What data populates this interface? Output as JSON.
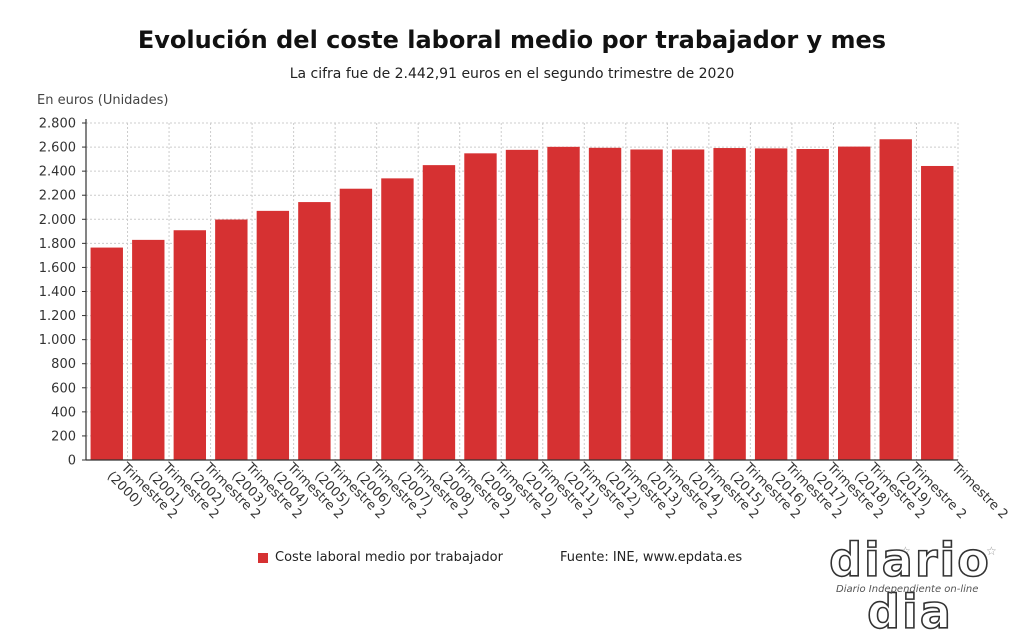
{
  "header": {
    "title": "Evolución del coste laboral medio por trabajador y mes",
    "subtitle": "La cifra fue de 2.442,91 euros en el segundo trimestre de 2020",
    "unit_label": "En euros (Unidades)"
  },
  "legend": {
    "series_label": "Coste laboral medio por trabajador",
    "source": "Fuente: INE, www.epdata.es"
  },
  "logo": {
    "word": "diario dia",
    "tagline": "Diario Independiente on-line",
    "star_glyph": "☆"
  },
  "colors": {
    "bar": "#d63132",
    "grid": "#cccccc",
    "axis": "#333333"
  },
  "chart_data": {
    "type": "bar",
    "title": "Evolución del coste laboral medio por trabajador y mes",
    "subtitle": "La cifra fue de 2.442,91 euros en el segundo trimestre de 2020",
    "ylabel": "En euros (Unidades)",
    "xlabel": "",
    "ylim": [
      0,
      2800
    ],
    "yticks": [
      0,
      200,
      400,
      600,
      800,
      1000,
      1200,
      1400,
      1600,
      1800,
      2000,
      2200,
      2400,
      2600,
      2800
    ],
    "ytick_labels": [
      "0",
      "200",
      "400",
      "600",
      "800",
      "1.000",
      "1.200",
      "1.400",
      "1.600",
      "1.800",
      "2.000",
      "2.200",
      "2.400",
      "2.600",
      "2.800"
    ],
    "grid": true,
    "legend_position": "bottom",
    "categories": [
      "Trimestre 2 (2000)",
      "Trimestre 2 (2001)",
      "Trimestre 2 (2002)",
      "Trimestre 2 (2003)",
      "Trimestre 2 (2004)",
      "Trimestre 2 (2005)",
      "Trimestre 2 (2006)",
      "Trimestre 2 (2007)",
      "Trimestre 2 (2008)",
      "Trimestre 2 (2009)",
      "Trimestre 2 (2010)",
      "Trimestre 2 (2011)",
      "Trimestre 2 (2012)",
      "Trimestre 2 (2013)",
      "Trimestre 2 (2014)",
      "Trimestre 2 (2015)",
      "Trimestre 2 (2016)",
      "Trimestre 2 (2017)",
      "Trimestre 2 (2018)",
      "Trimestre 2 (2019)",
      "Trimestre 2"
    ],
    "series": [
      {
        "name": "Coste laboral medio por trabajador",
        "values": [
          1765,
          1829,
          1909,
          1998,
          2070,
          2143,
          2254,
          2340,
          2450,
          2548,
          2577,
          2602,
          2594,
          2580,
          2580,
          2592,
          2589,
          2584,
          2604,
          2665,
          2442.91
        ]
      }
    ]
  }
}
